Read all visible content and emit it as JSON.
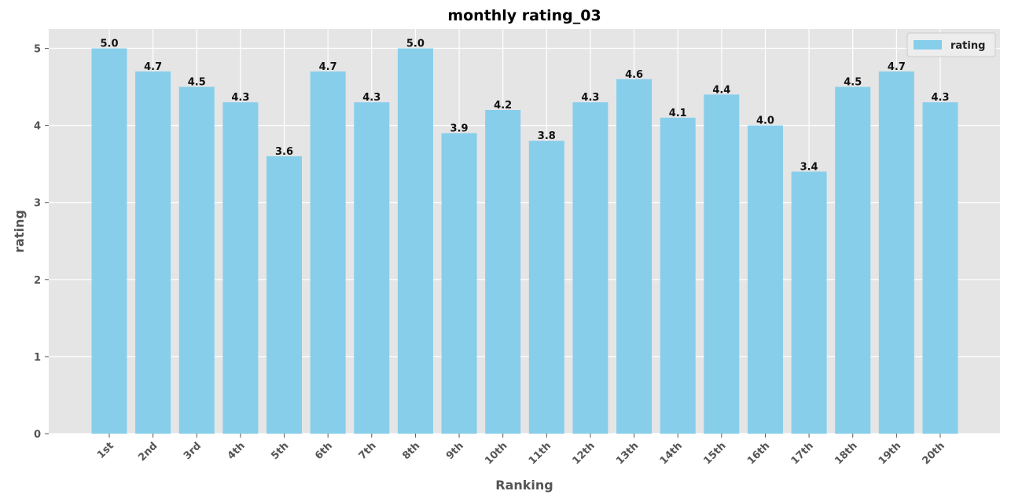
{
  "chart_data": {
    "type": "bar",
    "title": "monthly rating_03",
    "xlabel": "Ranking",
    "ylabel": "rating",
    "categories": [
      "1st",
      "2nd",
      "3rd",
      "4th",
      "5th",
      "6th",
      "7th",
      "8th",
      "9th",
      "10th",
      "11th",
      "12th",
      "13th",
      "14th",
      "15th",
      "16th",
      "17th",
      "18th",
      "19th",
      "20th"
    ],
    "series": [
      {
        "name": "rating",
        "color": "#87CEEB",
        "values": [
          5.0,
          4.7,
          4.5,
          4.3,
          3.6,
          4.7,
          4.3,
          5.0,
          3.9,
          4.2,
          3.8,
          4.3,
          4.6,
          4.1,
          4.4,
          4.0,
          3.4,
          4.5,
          4.7,
          4.3
        ],
        "value_labels": [
          "5.0",
          "4.7",
          "4.5",
          "4.3",
          "3.6",
          "4.7",
          "4.3",
          "5.0",
          "3.9",
          "4.2",
          "3.8",
          "4.3",
          "4.6",
          "4.1",
          "4.4",
          "4.0",
          "3.4",
          "4.5",
          "4.7",
          "4.3"
        ]
      }
    ],
    "ylim": [
      0,
      5.25
    ],
    "yticks": [
      0,
      1,
      2,
      3,
      4,
      5
    ],
    "ytick_labels": [
      "0",
      "1",
      "2",
      "3",
      "4",
      "5"
    ],
    "grid": true,
    "legend": "top-right",
    "background_color": "#E5E5E5",
    "grid_color": "#FFFFFF"
  }
}
